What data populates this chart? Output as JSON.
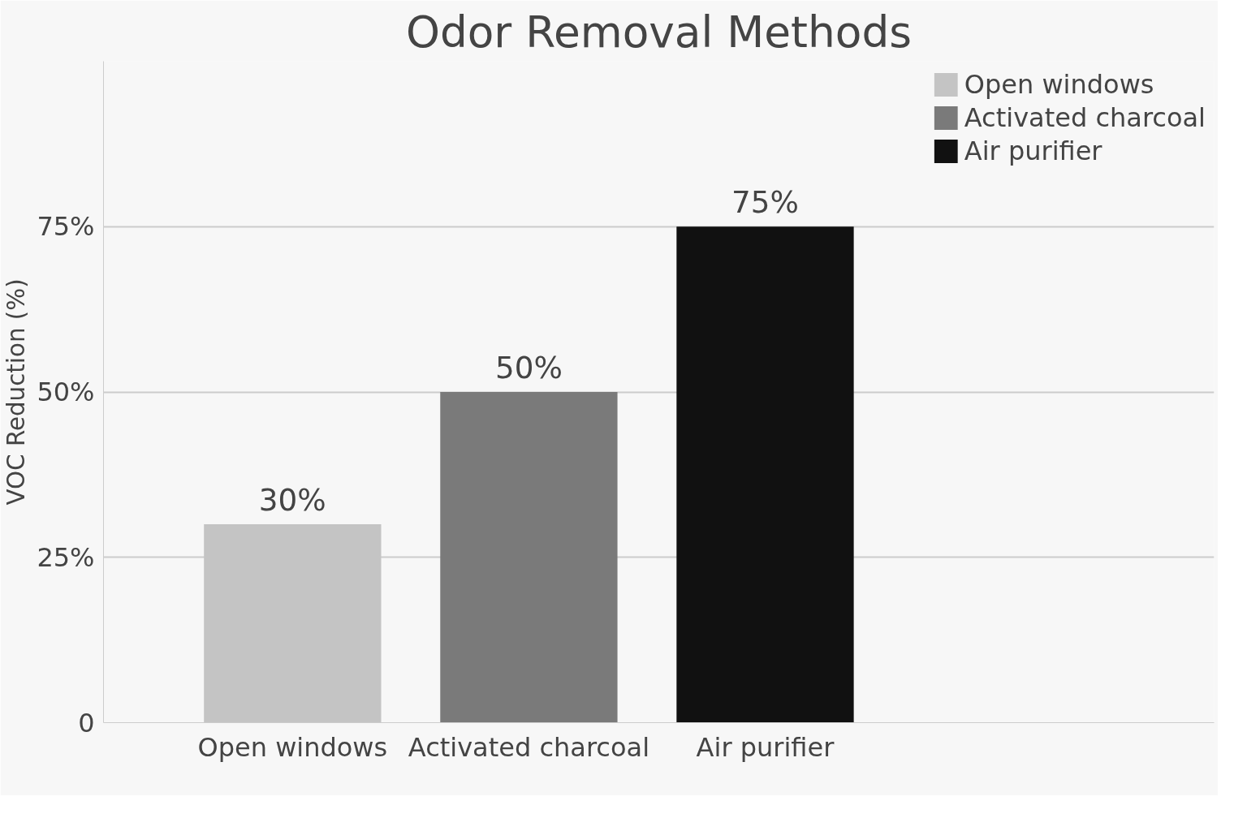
{
  "chart_data": {
    "type": "bar",
    "title": "Odor Removal Methods",
    "ylabel": "VOC Reduction (%)",
    "categories": [
      "Open windows",
      "Activated charcoal",
      "Air purifier"
    ],
    "series": [
      {
        "name": "Open windows",
        "color": "#c4c4c4",
        "values": [
          30,
          null,
          null
        ],
        "value_labels": [
          "30%",
          null,
          null
        ]
      },
      {
        "name": "Activated charcoal",
        "color": "#7a7a7a",
        "values": [
          null,
          50,
          null
        ],
        "value_labels": [
          null,
          "50%",
          null
        ]
      },
      {
        "name": "Air purifier",
        "color": "#111111",
        "values": [
          null,
          null,
          75
        ],
        "value_labels": [
          null,
          null,
          "75%"
        ]
      }
    ],
    "ylim": [
      0,
      100
    ],
    "yticks": [
      0,
      {
        "value": 25,
        "label": "25%"
      },
      {
        "value": 50,
        "label": "50%"
      },
      {
        "value": 75,
        "label": "75%"
      }
    ],
    "grid": "y",
    "legend": "top right"
  }
}
